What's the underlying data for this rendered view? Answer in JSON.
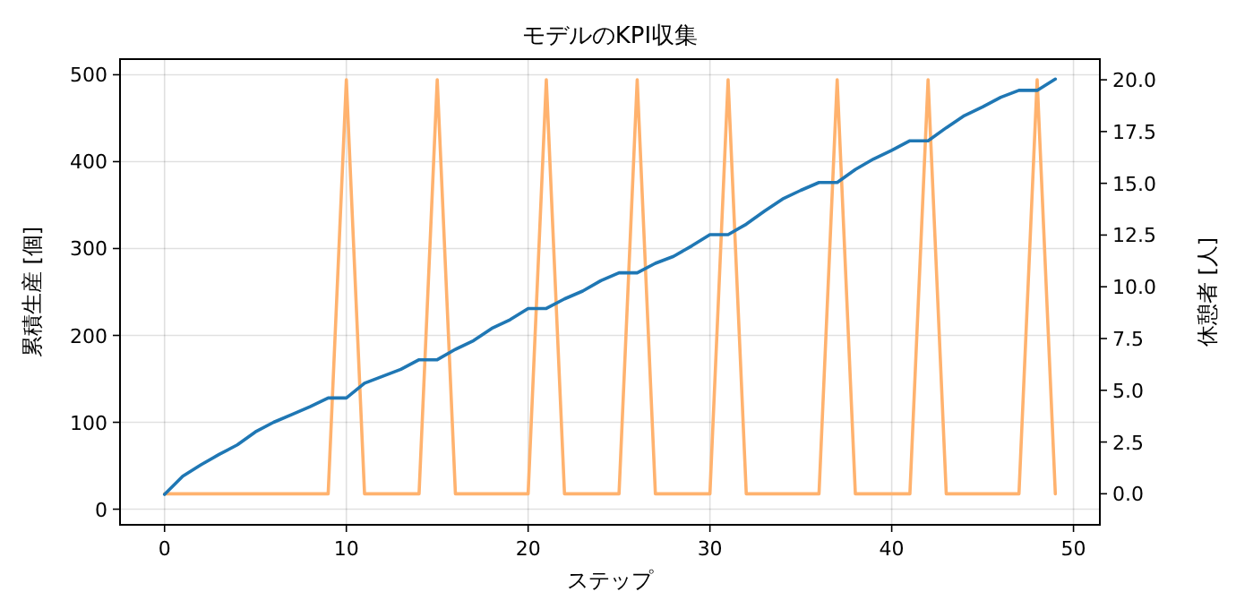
{
  "chart_data": {
    "type": "line",
    "title": "モデルのKPI収集",
    "xlabel": "ステップ",
    "ylabel": "累積生産 [個]",
    "y2label": "休憩者 [人]",
    "x": [
      0,
      1,
      2,
      3,
      4,
      5,
      6,
      7,
      8,
      9,
      10,
      11,
      12,
      13,
      14,
      15,
      16,
      17,
      18,
      19,
      20,
      21,
      22,
      23,
      24,
      25,
      26,
      27,
      28,
      29,
      30,
      31,
      32,
      33,
      34,
      35,
      36,
      37,
      38,
      39,
      40,
      41,
      42,
      43,
      44,
      45,
      46,
      47,
      48,
      49
    ],
    "series": [
      {
        "color": "#1f77b4",
        "values": [
          17,
          38,
          51,
          63,
          74,
          89,
          100,
          109,
          118,
          128,
          128,
          145,
          153,
          161,
          172,
          172,
          184,
          194,
          208,
          218,
          231,
          231,
          242,
          251,
          263,
          272,
          272,
          283,
          291,
          303,
          316,
          316,
          328,
          343,
          357,
          367,
          376,
          376,
          391,
          403,
          413,
          424,
          424,
          439,
          453,
          463,
          474,
          482,
          482,
          495
        ]
      },
      {
        "color": "#ffb26e",
        "axis": "y2",
        "values": [
          0,
          0,
          0,
          0,
          0,
          0,
          0,
          0,
          0,
          0,
          20,
          0,
          0,
          0,
          0,
          20,
          0,
          0,
          0,
          0,
          0,
          20,
          0,
          0,
          0,
          0,
          20,
          0,
          0,
          0,
          0,
          20,
          0,
          0,
          0,
          0,
          0,
          20,
          0,
          0,
          0,
          0,
          20,
          0,
          0,
          0,
          0,
          0,
          20,
          0
        ]
      }
    ],
    "xlim": [
      -2.45,
      51.45
    ],
    "xticks": [
      0,
      10,
      20,
      30,
      40,
      50
    ],
    "ylim": [
      -18,
      518
    ],
    "yticks": [
      0,
      100,
      200,
      300,
      400,
      500
    ],
    "y2lim": [
      -1.5,
      21
    ],
    "y2ticks": [
      {
        "value": 0,
        "label": "0.0"
      },
      {
        "value": 2.5,
        "label": "2.5"
      },
      {
        "value": 5,
        "label": "5.0"
      },
      {
        "value": 7.5,
        "label": "7.5"
      },
      {
        "value": 10,
        "label": "10.0"
      },
      {
        "value": 12.5,
        "label": "12.5"
      },
      {
        "value": 15,
        "label": "15.0"
      },
      {
        "value": 17.5,
        "label": "17.5"
      },
      {
        "value": 20,
        "label": "20.0"
      }
    ],
    "grid": true,
    "marker": "none",
    "line_style": "solid"
  }
}
